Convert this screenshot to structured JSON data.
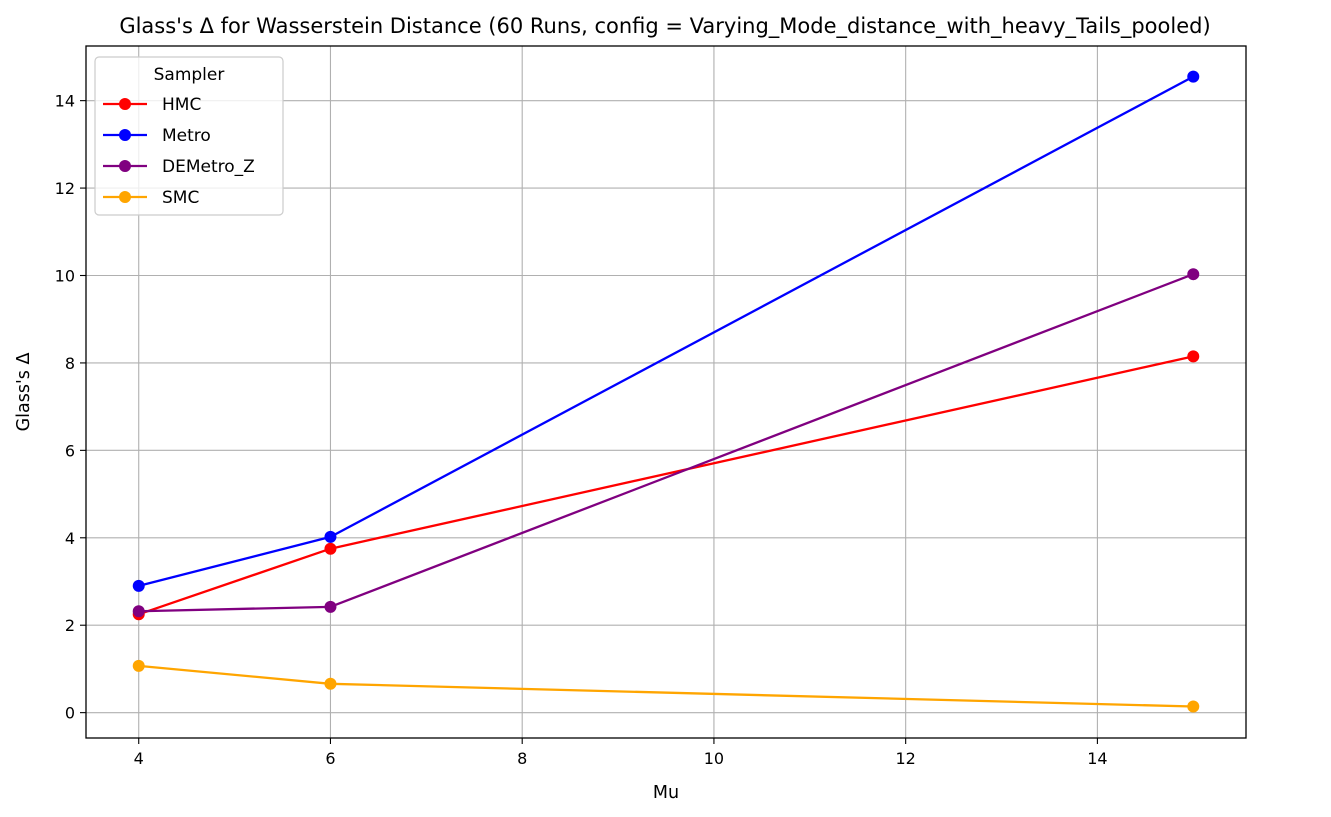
{
  "chart_data": {
    "type": "line",
    "title": "Glass's Δ for Wasserstein Distance (60 Runs, config = Varying_Mode_distance_with_heavy_Tails_pooled)",
    "xlabel": "Mu",
    "ylabel": "Glass's Δ",
    "x": [
      4,
      6,
      15
    ],
    "xlim": [
      3.45,
      15.55
    ],
    "ylim": [
      -0.58,
      15.25
    ],
    "xticks": [
      4,
      6,
      8,
      10,
      12,
      14
    ],
    "yticks": [
      0,
      2,
      4,
      6,
      8,
      10,
      12,
      14
    ],
    "grid": true,
    "legend": {
      "title": "Sampler",
      "placement": "top-left"
    },
    "series": [
      {
        "name": "HMC",
        "color": "#ff0000",
        "values": [
          2.25,
          3.75,
          8.15
        ]
      },
      {
        "name": "Metro",
        "color": "#0000ff",
        "values": [
          2.9,
          4.02,
          14.55
        ]
      },
      {
        "name": "DEMetro_Z",
        "color": "#800080",
        "values": [
          2.32,
          2.42,
          10.03
        ]
      },
      {
        "name": "SMC",
        "color": "#ffa500",
        "values": [
          1.07,
          0.66,
          0.14
        ]
      }
    ]
  }
}
